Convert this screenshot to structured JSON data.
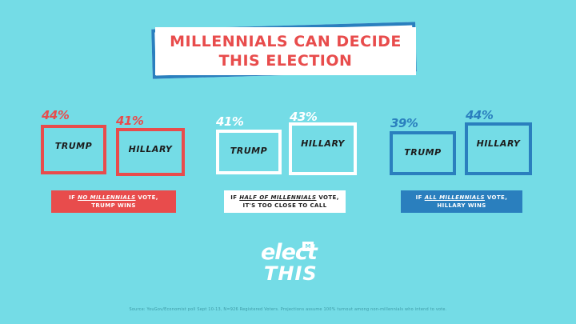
{
  "title": {
    "line1": "MILLENNIALS CAN DECIDE",
    "line2": "THIS ELECTION"
  },
  "colors": {
    "background": "#74dce6",
    "red": "#e84c4c",
    "white": "#ffffff",
    "blue": "#2a7fbe",
    "title_text": "#e84c4c",
    "title_border": "#2a7fbe"
  },
  "chart_data": [
    {
      "type": "bar",
      "categories": [
        "TRUMP",
        "HILLARY"
      ],
      "values": [
        44,
        41
      ],
      "labels": [
        "44%",
        "41%"
      ],
      "color": "#e84c4c",
      "caption_pre": "IF ",
      "caption_em": "NO MILLENNIALS",
      "caption_post": " VOTE,",
      "caption_line2": "TRUMP WINS"
    },
    {
      "type": "bar",
      "categories": [
        "TRUMP",
        "HILLARY"
      ],
      "values": [
        41,
        43
      ],
      "labels": [
        "41%",
        "43%"
      ],
      "color": "#ffffff",
      "caption_pre": "IF ",
      "caption_em": "HALF OF MILLENNIALS",
      "caption_post": " VOTE,",
      "caption_line2": "IT'S TOO CLOSE TO CALL"
    },
    {
      "type": "bar",
      "categories": [
        "TRUMP",
        "HILLARY"
      ],
      "values": [
        39,
        44
      ],
      "labels": [
        "39%",
        "44%"
      ],
      "color": "#2a7fbe",
      "caption_pre": "IF ",
      "caption_em": "ALL MILLENNIALS",
      "caption_post": " VOTE,",
      "caption_line2": "HILLARY  WINS"
    }
  ],
  "logo": {
    "word1": "elect",
    "word2": "THIS",
    "badge": "M"
  },
  "source": "Source: YouGov/Economist poll Sept 10-13, N=926 Registered Voters. Projections assume 100% turnout among non-millennials who intend to vote."
}
